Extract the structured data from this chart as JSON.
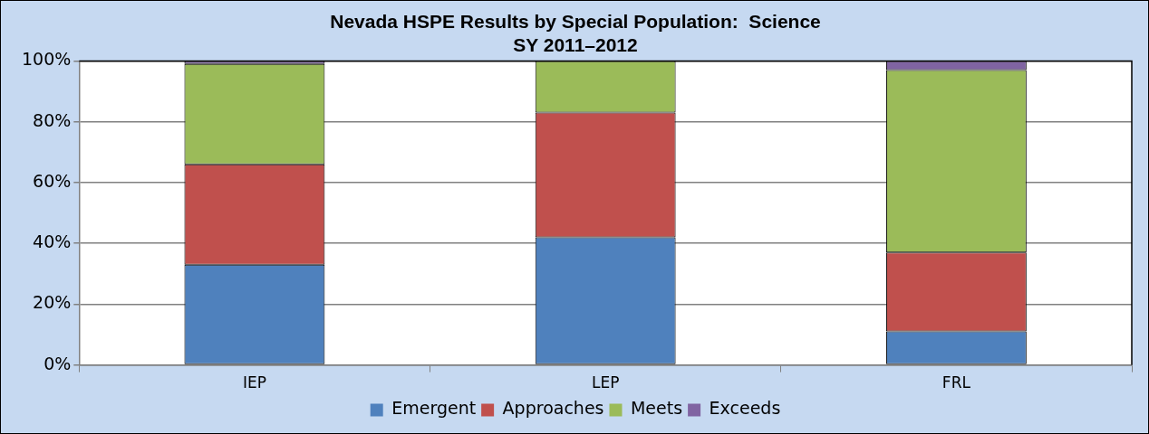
{
  "chart_data": {
    "type": "bar",
    "title": "Nevada HSPE Results by Special Population:  Science",
    "subtitle": "SY 2011–2012",
    "categories": [
      "IEP",
      "LEP",
      "FRL"
    ],
    "stacked": true,
    "series": [
      {
        "name": "Emergent",
        "color": "#4f81bd",
        "values": [
          33,
          42,
          11
        ]
      },
      {
        "name": "Approaches",
        "color": "#c0504d",
        "values": [
          33,
          41,
          26
        ]
      },
      {
        "name": "Meets",
        "color": "#9bbb59",
        "values": [
          33,
          17,
          60
        ]
      },
      {
        "name": "Exceeds",
        "color": "#8064a2",
        "values": [
          1,
          0,
          3
        ]
      }
    ],
    "ylim": [
      0,
      100
    ],
    "yticks": [
      {
        "value": 0,
        "label": "0%"
      },
      {
        "value": 20,
        "label": "20%"
      },
      {
        "value": 40,
        "label": "40%"
      },
      {
        "value": 60,
        "label": "60%"
      },
      {
        "value": 80,
        "label": "80%"
      },
      {
        "value": 100,
        "label": "100%"
      }
    ],
    "grid": "y",
    "legend": "bottom"
  }
}
